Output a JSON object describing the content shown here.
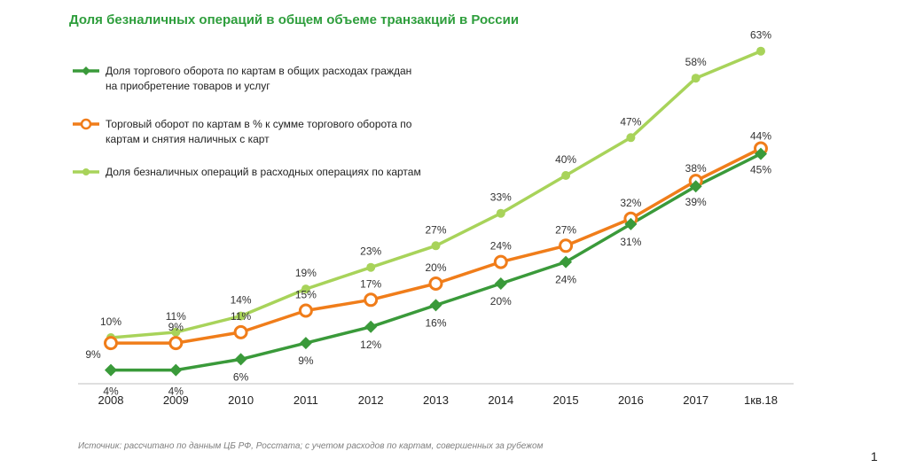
{
  "title": "Доля безналичных операций в общем объеме транзакций в России",
  "source": "Источник: рассчитано по данным ЦБ РФ, Росстата; с учетом расходов по картам, совершенных за рубежом",
  "page_number": "1",
  "chart_data": {
    "type": "line",
    "categories": [
      "2008",
      "2009",
      "2010",
      "2011",
      "2012",
      "2013",
      "2014",
      "2015",
      "2016",
      "2017",
      "1кв.18"
    ],
    "ylabel": "",
    "xlabel": "",
    "ylim": [
      0,
      70
    ],
    "grid": false,
    "legend_position": "top-left",
    "series": [
      {
        "name_lines": [
          "Доля торгового оборота по картам в общих расходах граждан",
          "на приобретение товаров и услуг"
        ],
        "color": "#3a9a3a",
        "marker": "diamond",
        "values": [
          4,
          4,
          6,
          9,
          12,
          16,
          20,
          24,
          31,
          38,
          44
        ],
        "labels": [
          "4%",
          "4%",
          "6%",
          "9%",
          "12%",
          "16%",
          "20%",
          "24%",
          "31%",
          "38%",
          "44%"
        ]
      },
      {
        "name_lines": [
          "Торговый оборот по картам в % к сумме торгового оборота по",
          "картам и снятия наличных с карт"
        ],
        "color": "#f07d1a",
        "marker": "ring",
        "values": [
          9,
          9,
          11,
          15,
          17,
          20,
          24,
          27,
          32,
          39,
          45
        ],
        "labels": [
          "9%",
          "9%",
          "11%",
          "15%",
          "17%",
          "20%",
          "24%",
          "27%",
          "32%",
          "39%",
          "45%"
        ]
      },
      {
        "name_lines": [
          "Доля безналичных операций в расходных операциях по картам"
        ],
        "color": "#a8d35a",
        "marker": "circle",
        "values": [
          10,
          11,
          14,
          19,
          23,
          27,
          33,
          40,
          47,
          58,
          63
        ],
        "labels": [
          "10%",
          "11%",
          "14%",
          "19%",
          "23%",
          "27%",
          "33%",
          "40%",
          "47%",
          "58%",
          "63%"
        ]
      }
    ]
  }
}
